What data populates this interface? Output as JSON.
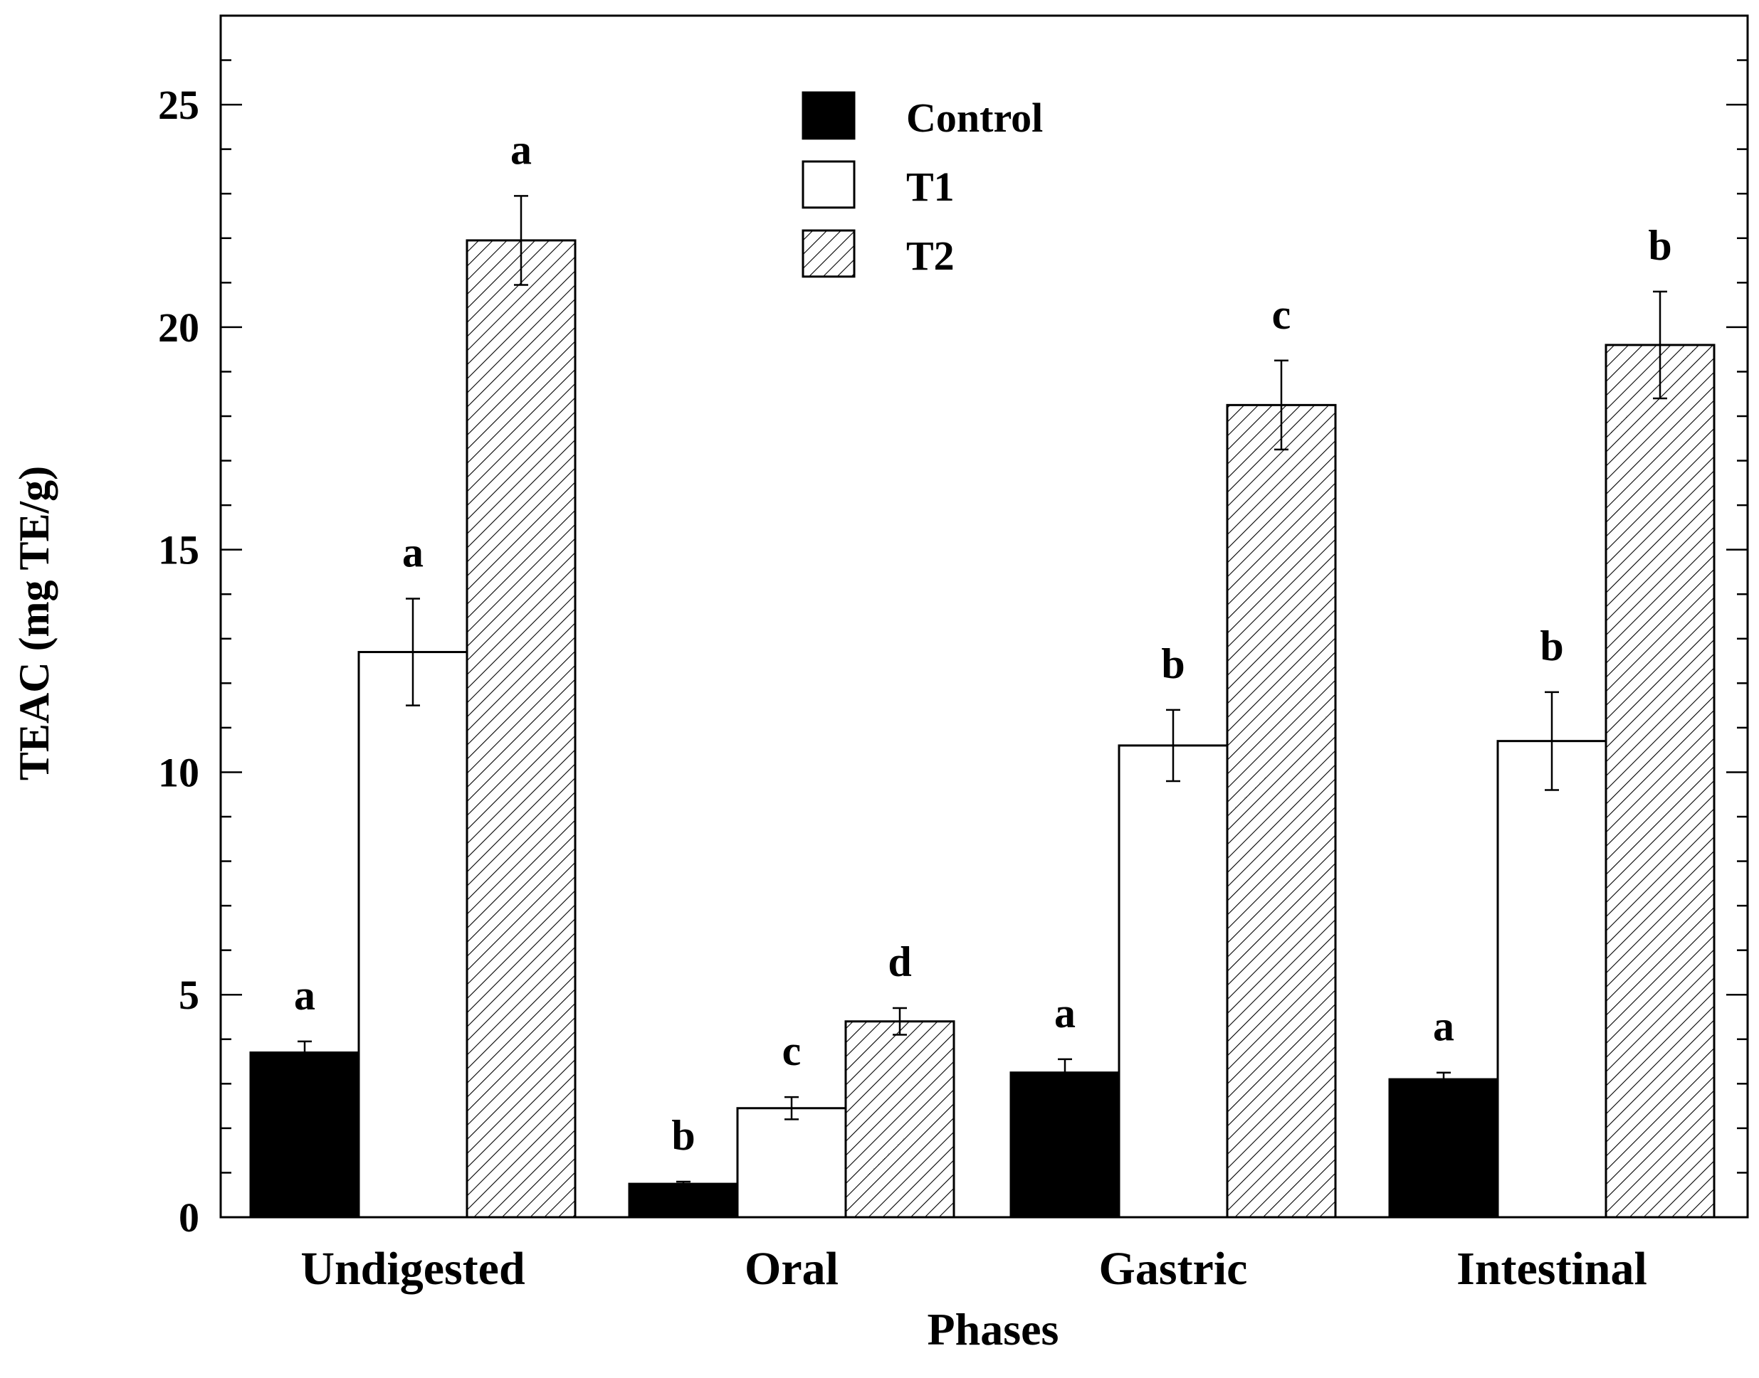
{
  "chart_data": {
    "type": "bar",
    "title": "",
    "xlabel": "Phases",
    "ylabel": "TEAC (mg TE/g)",
    "ylim": [
      0,
      27
    ],
    "yticks": [
      0,
      5,
      10,
      15,
      20,
      25
    ],
    "yticks_minor_step": 1,
    "grid": false,
    "legend_position": "top-center",
    "categories": [
      "Undigested",
      "Oral",
      "Gastric",
      "Intestinal"
    ],
    "series": [
      {
        "name": "Control",
        "fill": "solid",
        "color": "#000000",
        "values": [
          3.7,
          0.75,
          3.25,
          3.1
        ],
        "errors": [
          0.25,
          0.05,
          0.3,
          0.15
        ],
        "letters": [
          "a",
          "b",
          "a",
          "a"
        ]
      },
      {
        "name": "T1",
        "fill": "empty",
        "color": "#ffffff",
        "values": [
          12.7,
          2.45,
          10.6,
          10.7
        ],
        "errors": [
          1.2,
          0.25,
          0.8,
          1.1
        ],
        "letters": [
          "a",
          "c",
          "b",
          "b"
        ]
      },
      {
        "name": "T2",
        "fill": "hatched",
        "color": "#ffffff",
        "values": [
          21.95,
          4.4,
          18.25,
          19.6
        ],
        "errors": [
          1.0,
          0.3,
          1.0,
          1.2
        ],
        "letters": [
          "a",
          "d",
          "c",
          "b"
        ]
      }
    ]
  }
}
